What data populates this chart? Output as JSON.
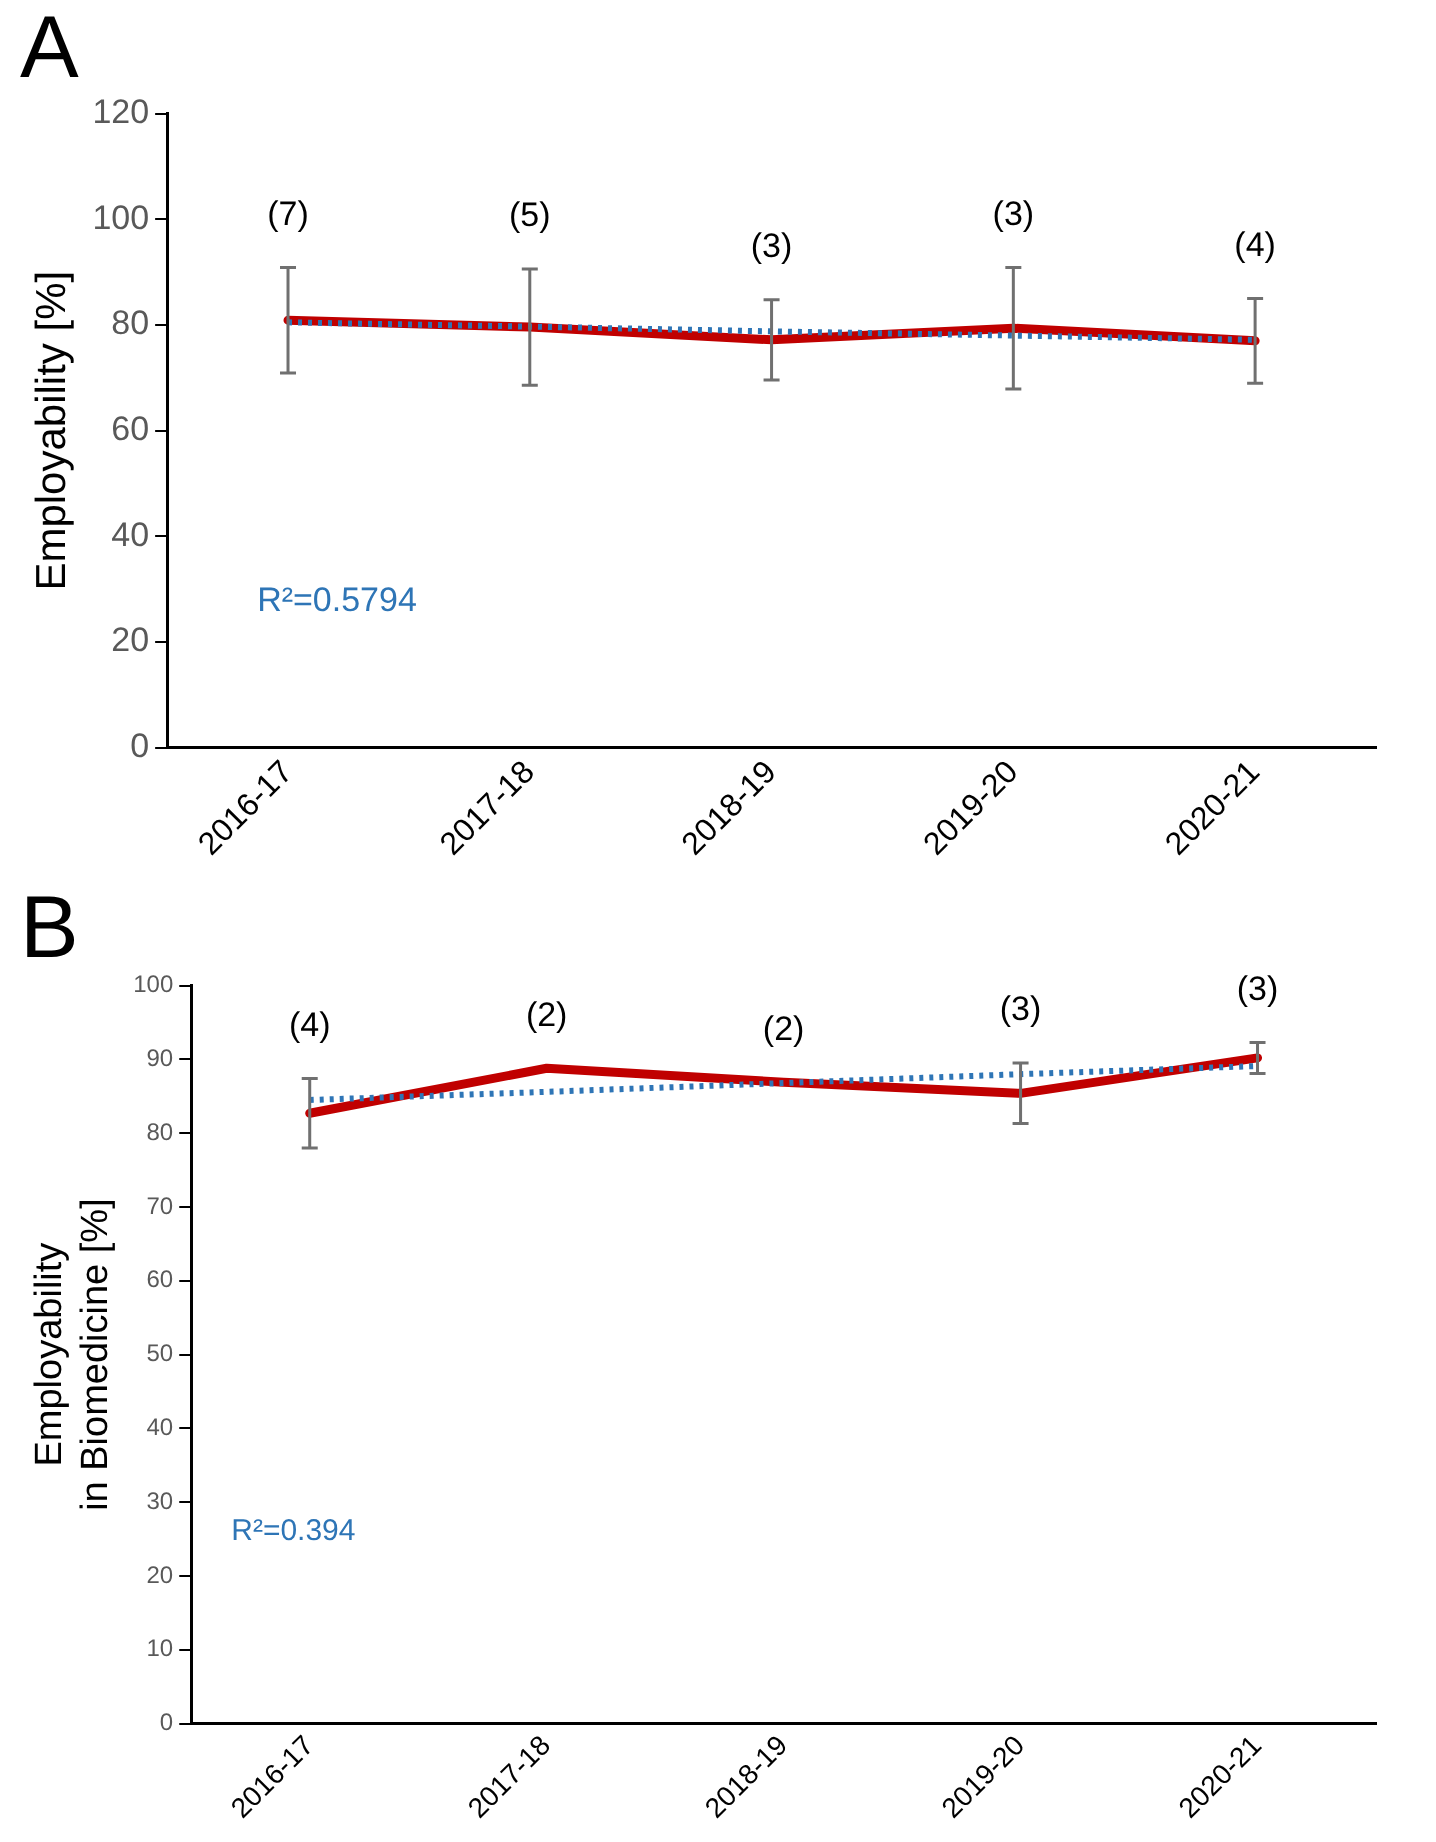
{
  "chart_data": [
    {
      "type": "line",
      "title": "A",
      "ylabel": "Employability [%]",
      "categories": [
        "2016-17",
        "2017-18",
        "2018-19",
        "2019-20",
        "2020-21"
      ],
      "ylim": [
        0,
        120
      ],
      "yticks": [
        0,
        20,
        40,
        60,
        80,
        100,
        120
      ],
      "grid": false,
      "legend": false,
      "marker": "none",
      "series": [
        {
          "color": "#c00000",
          "values": [
            80.9,
            79.6,
            77.2,
            79.4,
            77.0
          ],
          "errors": [
            10,
            11,
            7.6,
            11.5,
            8
          ],
          "line_style": "solid"
        },
        {
          "color": "#2e75b6",
          "values": [
            80.5,
            79.7,
            78.8,
            78.0,
            77.2
          ],
          "line_style": "dotted"
        }
      ],
      "annotations": [
        "(7)",
        "(5)",
        "(3)",
        "(3)",
        "(4)",
        "R²=0.5794"
      ]
    },
    {
      "type": "line",
      "title": "B",
      "ylabel": "Employability in Biomedicine [%]",
      "categories": [
        "2016-17",
        "2017-18",
        "2018-19",
        "2019-20",
        "2020-21"
      ],
      "ylim": [
        0,
        100
      ],
      "yticks": [
        0,
        10,
        20,
        30,
        40,
        50,
        60,
        70,
        80,
        90,
        100
      ],
      "grid": false,
      "legend": false,
      "marker": "none",
      "series": [
        {
          "color": "#c00000",
          "values": [
            82.7,
            88.8,
            86.9,
            85.4,
            90.2
          ],
          "errors": [
            4.7,
            null,
            null,
            4.1,
            2.1
          ],
          "line_style": "solid"
        },
        {
          "color": "#2e75b6",
          "values": [
            84.5,
            85.6,
            86.8,
            88.0,
            89.1
          ],
          "line_style": "dotted"
        }
      ],
      "annotations": [
        "(4)",
        "(2)",
        "(2)",
        "(3)",
        "(3)",
        "R²=0.394"
      ]
    }
  ]
}
